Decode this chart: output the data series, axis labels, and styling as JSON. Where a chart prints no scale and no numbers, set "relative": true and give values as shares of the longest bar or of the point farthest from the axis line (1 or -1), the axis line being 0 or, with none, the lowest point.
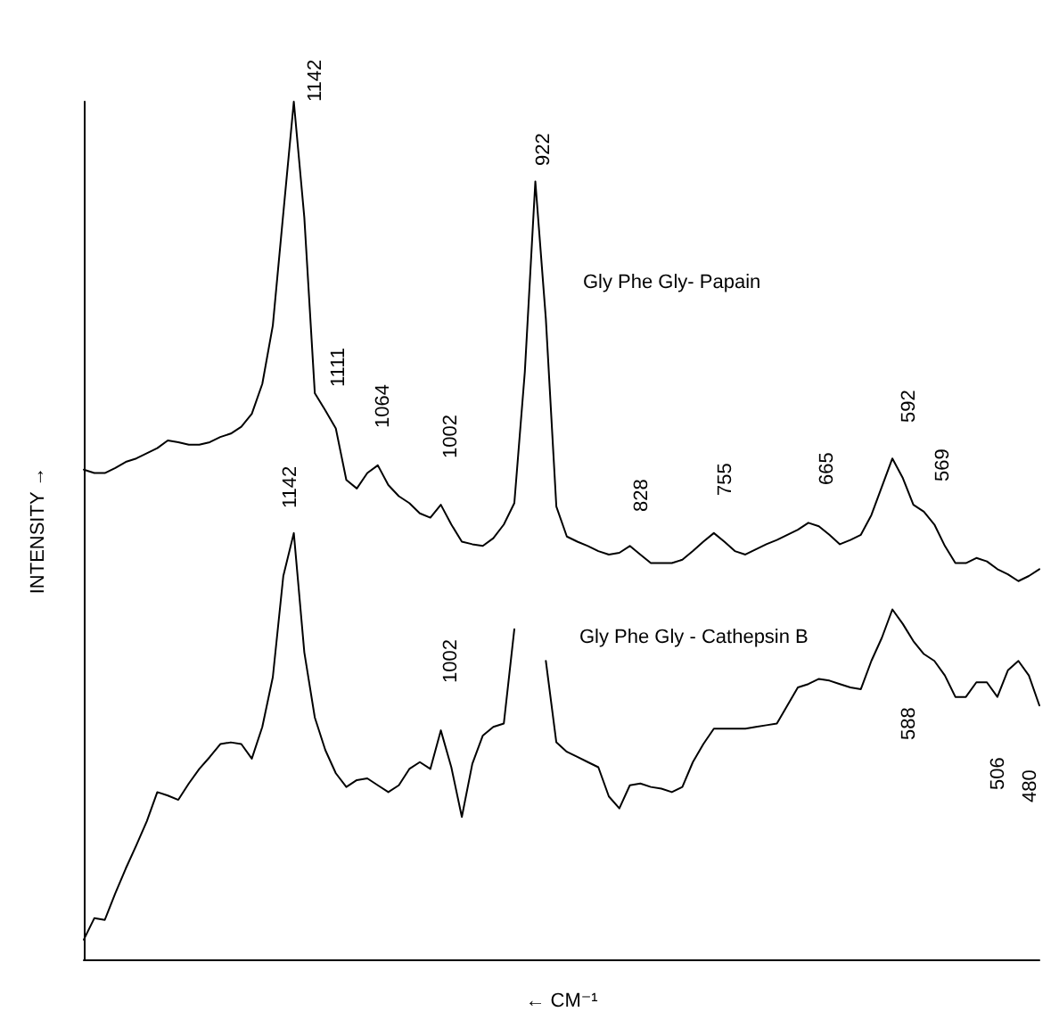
{
  "chart_data": {
    "type": "line",
    "xlabel": "← CM⁻¹",
    "ylabel": "INTENSITY →",
    "relative": true,
    "marker": "none",
    "line_style": "solid",
    "categories": [
      null,
      null,
      null,
      null,
      null,
      null,
      null,
      null,
      null,
      null,
      null,
      null,
      null,
      null,
      null,
      null,
      null,
      null,
      null,
      null,
      null,
      null,
      null,
      null,
      null,
      null,
      null,
      null,
      null,
      null,
      null,
      null,
      null,
      null,
      null,
      null,
      null,
      null,
      null,
      null,
      null,
      null,
      null,
      null,
      null,
      null,
      null,
      null,
      null,
      null,
      null,
      null,
      null,
      null,
      null,
      null,
      null,
      null,
      null,
      null,
      null,
      null,
      null,
      null,
      null,
      null,
      null,
      null,
      null,
      null,
      null,
      null,
      null,
      null,
      null,
      null,
      null,
      null,
      null,
      null,
      null,
      null,
      null,
      null,
      null,
      null,
      null,
      null,
      null,
      null,
      null,
      null
    ],
    "series": [
      {
        "name": "Gly Phe Gly- Papain",
        "color": "#000000",
        "values": [
          0.571,
          0.567,
          0.567,
          0.573,
          0.58,
          0.584,
          0.59,
          0.596,
          0.605,
          0.603,
          0.6,
          0.6,
          0.603,
          0.609,
          0.613,
          0.621,
          0.636,
          0.671,
          0.739,
          0.87,
          1,
          0.865,
          0.66,
          0.64,
          0.619,
          0.559,
          0.549,
          0.567,
          0.576,
          0.553,
          0.54,
          0.532,
          0.52,
          0.515,
          0.53,
          0.507,
          0.487,
          0.484,
          0.482,
          0.491,
          0.507,
          0.532,
          0.685,
          0.907,
          0.747,
          0.528,
          0.493,
          0.487,
          0.482,
          0.476,
          0.472,
          0.474,
          0.482,
          0.472,
          0.462,
          0.462,
          0.462,
          0.466,
          0.476,
          0.487,
          0.497,
          0.487,
          0.476,
          0.472,
          0.478,
          0.484,
          0.489,
          0.495,
          0.501,
          0.509,
          0.505,
          0.495,
          0.484,
          0.489,
          0.495,
          0.518,
          0.551,
          0.584,
          0.561,
          0.53,
          0.522,
          0.507,
          0.482,
          0.462,
          0.462,
          0.468,
          0.464,
          0.455,
          0.449,
          0.441,
          0.447,
          0.455
        ]
      },
      {
        "name": "Gly Phe Gly - Cathepsin B",
        "color": "#000000",
        "values": [
          0.023,
          0.048,
          0.046,
          0.077,
          0.106,
          0.133,
          0.161,
          0.195,
          0.191,
          0.186,
          0.205,
          0.222,
          0.236,
          0.251,
          0.253,
          0.251,
          0.234,
          0.271,
          0.329,
          0.447,
          0.497,
          0.358,
          0.282,
          0.244,
          0.217,
          0.201,
          0.209,
          0.211,
          0.203,
          0.195,
          0.203,
          0.222,
          0.23,
          0.222,
          0.267,
          0.224,
          0.166,
          0.228,
          0.261,
          0.271,
          0.275,
          0.385,
          null,
          null,
          0.348,
          0.253,
          0.242,
          0.236,
          0.23,
          0.224,
          0.19,
          0.176,
          0.203,
          0.205,
          0.201,
          0.199,
          0.195,
          0.201,
          0.23,
          0.251,
          0.269,
          0.269,
          0.269,
          0.269,
          0.271,
          0.273,
          0.275,
          0.296,
          0.317,
          0.321,
          0.327,
          0.325,
          0.321,
          0.317,
          0.315,
          0.348,
          0.375,
          0.408,
          0.391,
          0.371,
          0.356,
          0.348,
          0.331,
          0.306,
          0.306,
          0.323,
          0.323,
          0.306,
          0.337,
          0.348,
          0.331,
          0.296
        ]
      }
    ],
    "annotations": [
      "1142",
      "1111",
      "1064",
      "1002",
      "922",
      "828",
      "755",
      "665",
      "592",
      "569",
      "1142",
      "1002",
      "588",
      "506",
      "480"
    ]
  }
}
